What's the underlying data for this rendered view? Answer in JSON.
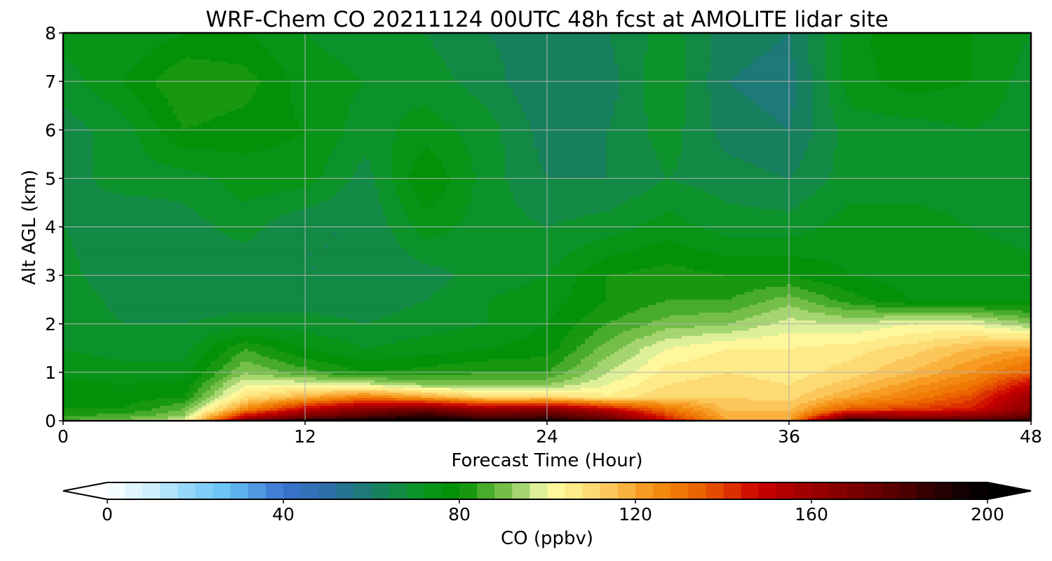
{
  "chart_data": {
    "type": "heatmap",
    "title": "WRF-Chem CO  20211124 00UTC 48h fcst at AMOLITE lidar site",
    "xlabel": "Forecast Time (Hour)",
    "ylabel": "Alt AGL (km)",
    "xlim": [
      0,
      48
    ],
    "ylim": [
      0,
      8
    ],
    "x_ticks": [
      "0",
      "12",
      "24",
      "36",
      "48"
    ],
    "y_ticks": [
      "0",
      "1",
      "2",
      "3",
      "4",
      "5",
      "6",
      "7",
      "8"
    ],
    "grid": true,
    "x": [
      0,
      3,
      6,
      9,
      12,
      15,
      18,
      21,
      24,
      27,
      30,
      33,
      36,
      39,
      42,
      45,
      48
    ],
    "y": [
      0,
      0.1,
      0.25,
      0.5,
      0.75,
      1,
      1.5,
      2,
      2.5,
      3,
      4,
      5,
      6,
      7,
      8
    ],
    "z": [
      [
        88,
        92,
        100,
        170,
        195,
        200,
        200,
        195,
        195,
        180,
        150,
        120,
        120,
        200,
        190,
        185,
        190
      ],
      [
        84,
        86,
        92,
        150,
        170,
        180,
        190,
        178,
        182,
        170,
        140,
        118,
        118,
        165,
        160,
        165,
        175
      ],
      [
        80,
        80,
        88,
        125,
        150,
        165,
        170,
        160,
        165,
        150,
        130,
        115,
        115,
        135,
        140,
        145,
        165
      ],
      [
        78,
        78,
        80,
        108,
        118,
        128,
        120,
        110,
        110,
        105,
        112,
        112,
        110,
        120,
        128,
        138,
        160
      ],
      [
        77,
        76,
        77,
        100,
        100,
        98,
        92,
        92,
        92,
        100,
        108,
        110,
        108,
        114,
        122,
        130,
        150
      ],
      [
        75,
        74,
        74,
        92,
        86,
        80,
        82,
        84,
        84,
        96,
        106,
        108,
        106,
        110,
        116,
        124,
        135
      ],
      [
        72,
        70,
        70,
        84,
        76,
        72,
        74,
        76,
        78,
        90,
        100,
        104,
        104,
        106,
        110,
        116,
        120
      ],
      [
        72,
        68,
        68,
        70,
        70,
        68,
        70,
        72,
        76,
        84,
        90,
        92,
        98,
        96,
        100,
        100,
        92
      ],
      [
        72,
        66,
        66,
        66,
        66,
        66,
        68,
        72,
        74,
        80,
        84,
        84,
        90,
        82,
        76,
        76,
        76
      ],
      [
        70,
        64,
        64,
        64,
        64,
        64,
        66,
        70,
        72,
        80,
        82,
        80,
        80,
        76,
        74,
        75,
        74
      ],
      [
        68,
        64,
        66,
        70,
        64,
        64,
        74,
        70,
        68,
        70,
        74,
        70,
        70,
        74,
        74,
        72,
        70
      ],
      [
        66,
        70,
        70,
        74,
        74,
        66,
        80,
        70,
        64,
        64,
        68,
        66,
        64,
        70,
        70,
        70,
        68
      ],
      [
        66,
        70,
        80,
        78,
        76,
        70,
        74,
        70,
        62,
        64,
        70,
        62,
        60,
        70,
        70,
        72,
        70
      ],
      [
        70,
        76,
        84,
        82,
        74,
        72,
        70,
        66,
        60,
        62,
        72,
        60,
        58,
        74,
        78,
        76,
        70
      ],
      [
        74,
        72,
        76,
        76,
        72,
        70,
        68,
        64,
        62,
        64,
        70,
        62,
        60,
        74,
        80,
        76,
        72
      ]
    ],
    "colorbar": {
      "label": "CO  (ppbv)",
      "min": 0,
      "max": 200,
      "ticks": [
        "0",
        "40",
        "80",
        "120",
        "160",
        "200"
      ],
      "extend": "both",
      "color_stops": [
        [
          0,
          "#ffffff"
        ],
        [
          10,
          "#cdeefd"
        ],
        [
          20,
          "#88d3f9"
        ],
        [
          28,
          "#64bff3"
        ],
        [
          40,
          "#3a73cf"
        ],
        [
          50,
          "#2c6fa8"
        ],
        [
          60,
          "#1a7b6c"
        ],
        [
          72,
          "#09961e"
        ],
        [
          80,
          "#008f00"
        ],
        [
          86,
          "#48ab2c"
        ],
        [
          92,
          "#8bc957"
        ],
        [
          97,
          "#cce893"
        ],
        [
          100,
          "#fefea4"
        ],
        [
          108,
          "#fde380"
        ],
        [
          116,
          "#fbbd4d"
        ],
        [
          124,
          "#f59014"
        ],
        [
          132,
          "#ee7000"
        ],
        [
          140,
          "#e13f00"
        ],
        [
          148,
          "#cb0000"
        ],
        [
          158,
          "#a20000"
        ],
        [
          170,
          "#7a0000"
        ],
        [
          182,
          "#4a0000"
        ],
        [
          192,
          "#1a0000"
        ],
        [
          200,
          "#000000"
        ]
      ]
    }
  }
}
